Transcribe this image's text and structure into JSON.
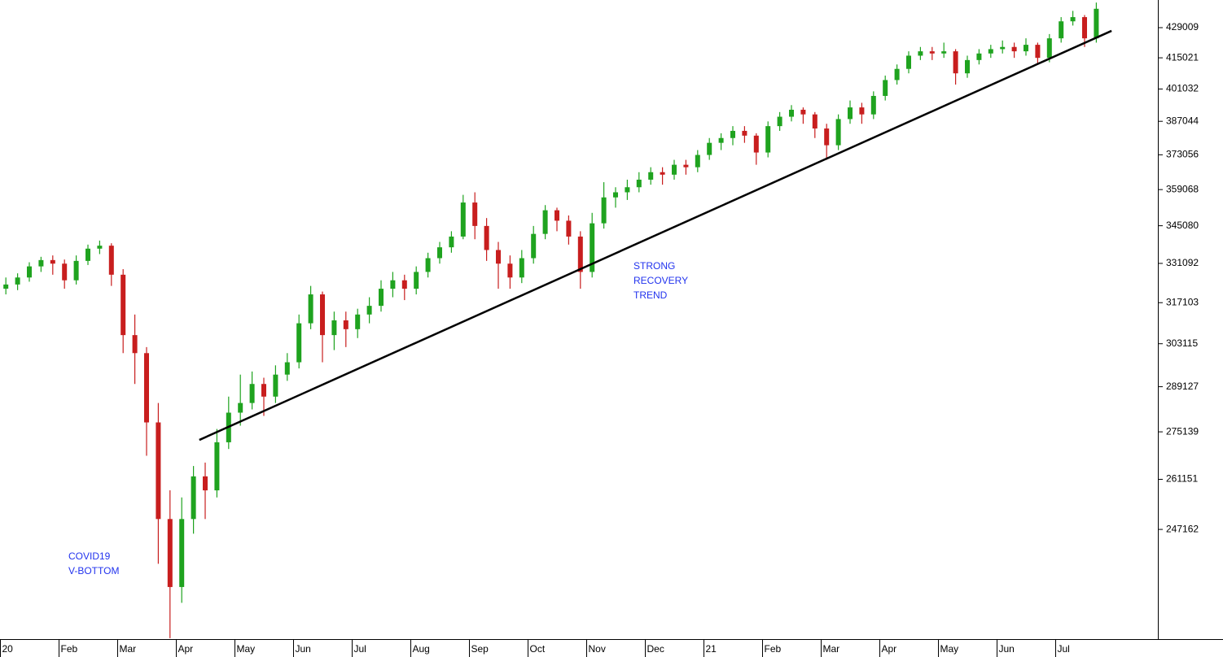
{
  "chart_data": {
    "type": "candlestick",
    "log_scale": true,
    "up_color": "#1fa31f",
    "down_color": "#c81e1e",
    "ylim": [
      219090,
      442245
    ],
    "yticks": [
      247162,
      261151,
      275139,
      289127,
      303115,
      317103,
      331092,
      345080,
      359068,
      373056,
      387044,
      401032,
      415021,
      429009
    ],
    "xticks": [
      {
        "value": 0,
        "label": "20"
      },
      {
        "value": 5,
        "label": "Feb"
      },
      {
        "value": 10,
        "label": "Mar"
      },
      {
        "value": 15,
        "label": "Apr"
      },
      {
        "value": 20,
        "label": "May"
      },
      {
        "value": 25,
        "label": "Jun"
      },
      {
        "value": 30,
        "label": "Jul"
      },
      {
        "value": 35,
        "label": "Aug"
      },
      {
        "value": 40,
        "label": "Sep"
      },
      {
        "value": 45,
        "label": "Oct"
      },
      {
        "value": 50,
        "label": "Nov"
      },
      {
        "value": 55,
        "label": "Dec"
      },
      {
        "value": 60,
        "label": "21"
      },
      {
        "value": 65,
        "label": "Feb"
      },
      {
        "value": 70,
        "label": "Mar"
      },
      {
        "value": 75,
        "label": "Apr"
      },
      {
        "value": 80,
        "label": "May"
      },
      {
        "value": 85,
        "label": "Jun"
      },
      {
        "value": 90,
        "label": "Jul"
      }
    ],
    "ohlc": [
      [
        322000,
        326000,
        320000,
        323500
      ],
      [
        323500,
        327500,
        321500,
        326000
      ],
      [
        326000,
        331500,
        324500,
        330000
      ],
      [
        330000,
        333500,
        328000,
        332300
      ],
      [
        332300,
        334000,
        327000,
        331000
      ],
      [
        331000,
        332500,
        322000,
        325000
      ],
      [
        325000,
        334000,
        323500,
        332000
      ],
      [
        332000,
        338000,
        330500,
        336500
      ],
      [
        336500,
        339500,
        334500,
        337600
      ],
      [
        337600,
        338500,
        323000,
        327000
      ],
      [
        327000,
        329000,
        300000,
        306000
      ],
      [
        306000,
        313000,
        290000,
        300000
      ],
      [
        300000,
        302000,
        268000,
        278000
      ],
      [
        278000,
        284000,
        238000,
        250000
      ],
      [
        250000,
        258000,
        219300,
        232000
      ],
      [
        232000,
        256000,
        228000,
        250000
      ],
      [
        250000,
        265000,
        246000,
        262000
      ],
      [
        262000,
        266000,
        250000,
        258000
      ],
      [
        258000,
        276000,
        256000,
        272000
      ],
      [
        272000,
        286000,
        270000,
        281000
      ],
      [
        281000,
        293000,
        277000,
        284000
      ],
      [
        284000,
        294000,
        282000,
        290000
      ],
      [
        290000,
        292000,
        280000,
        286000
      ],
      [
        286000,
        296000,
        284000,
        293000
      ],
      [
        293000,
        300000,
        291000,
        297000
      ],
      [
        297000,
        313000,
        295000,
        310000
      ],
      [
        310000,
        323000,
        308000,
        320000
      ],
      [
        320000,
        321000,
        297000,
        306000
      ],
      [
        306000,
        314000,
        301000,
        311000
      ],
      [
        311000,
        314000,
        302000,
        308000
      ],
      [
        308000,
        315000,
        305000,
        313000
      ],
      [
        313000,
        319000,
        310000,
        316000
      ],
      [
        316000,
        325000,
        314000,
        322000
      ],
      [
        322000,
        328000,
        319000,
        325000
      ],
      [
        325000,
        327000,
        318000,
        322000
      ],
      [
        322000,
        330000,
        320000,
        328000
      ],
      [
        328000,
        335000,
        326000,
        333000
      ],
      [
        333000,
        339000,
        331000,
        337000
      ],
      [
        337000,
        343000,
        335000,
        341000
      ],
      [
        341000,
        357000,
        340000,
        354000
      ],
      [
        354000,
        358000,
        340000,
        345000
      ],
      [
        345000,
        348000,
        332000,
        336000
      ],
      [
        336000,
        339000,
        322000,
        331000
      ],
      [
        331000,
        334000,
        322000,
        326000
      ],
      [
        326000,
        336000,
        324000,
        333000
      ],
      [
        333000,
        345000,
        331000,
        342000
      ],
      [
        342000,
        353000,
        340000,
        351000
      ],
      [
        351000,
        352000,
        343000,
        347000
      ],
      [
        347000,
        349000,
        338000,
        341000
      ],
      [
        341000,
        343000,
        322000,
        328000
      ],
      [
        328000,
        350000,
        326000,
        346000
      ],
      [
        346000,
        362000,
        344000,
        356000
      ],
      [
        356000,
        360000,
        352000,
        358000
      ],
      [
        358000,
        363000,
        355000,
        360000
      ],
      [
        360000,
        366000,
        358000,
        363000
      ],
      [
        363000,
        368000,
        361000,
        366000
      ],
      [
        366000,
        368000,
        361000,
        365000
      ],
      [
        365000,
        371000,
        363000,
        369000
      ],
      [
        369000,
        371000,
        365000,
        368000
      ],
      [
        368000,
        375000,
        366000,
        373000
      ],
      [
        373000,
        380000,
        371000,
        378000
      ],
      [
        378000,
        382000,
        375000,
        380000
      ],
      [
        380000,
        385000,
        377000,
        383000
      ],
      [
        383000,
        385000,
        378000,
        381000
      ],
      [
        381000,
        382000,
        369000,
        374000
      ],
      [
        374000,
        387000,
        372000,
        385000
      ],
      [
        385000,
        391000,
        383000,
        389000
      ],
      [
        389000,
        394000,
        387000,
        392000
      ],
      [
        392000,
        393000,
        386000,
        390000
      ],
      [
        390000,
        391000,
        380000,
        384000
      ],
      [
        384000,
        386000,
        371000,
        377000
      ],
      [
        377000,
        390000,
        375000,
        388000
      ],
      [
        388000,
        396000,
        386000,
        393000
      ],
      [
        393000,
        395000,
        386000,
        390000
      ],
      [
        390000,
        400000,
        388000,
        398000
      ],
      [
        398000,
        407000,
        396000,
        405000
      ],
      [
        405000,
        412000,
        403000,
        410000
      ],
      [
        410000,
        418000,
        408000,
        416000
      ],
      [
        416000,
        420000,
        414000,
        418000
      ],
      [
        418000,
        420000,
        414000,
        417000
      ],
      [
        417000,
        422000,
        415000,
        418000
      ],
      [
        418000,
        419000,
        403000,
        408000
      ],
      [
        408000,
        416000,
        406000,
        414000
      ],
      [
        414000,
        419000,
        412000,
        417000
      ],
      [
        417000,
        421000,
        415000,
        419000
      ],
      [
        419000,
        423000,
        417000,
        420000
      ],
      [
        420000,
        422000,
        415000,
        418000
      ],
      [
        418000,
        424000,
        416000,
        421000
      ],
      [
        421000,
        422000,
        412000,
        415000
      ],
      [
        415000,
        426000,
        413000,
        424000
      ],
      [
        424000,
        434000,
        422000,
        432000
      ],
      [
        432000,
        437000,
        430000,
        434000
      ],
      [
        434000,
        435000,
        420000,
        424000
      ],
      [
        424000,
        441000,
        422000,
        438000
      ]
    ],
    "trendline": {
      "from": {
        "x": 17,
        "y": 272700
      },
      "to": {
        "x": 94.8,
        "y": 427500
      }
    },
    "annotations": [
      [
        "COVID19",
        "V-BOTTOM"
      ],
      [
        "STRONG",
        "RECOVERY",
        "TREND"
      ]
    ]
  }
}
